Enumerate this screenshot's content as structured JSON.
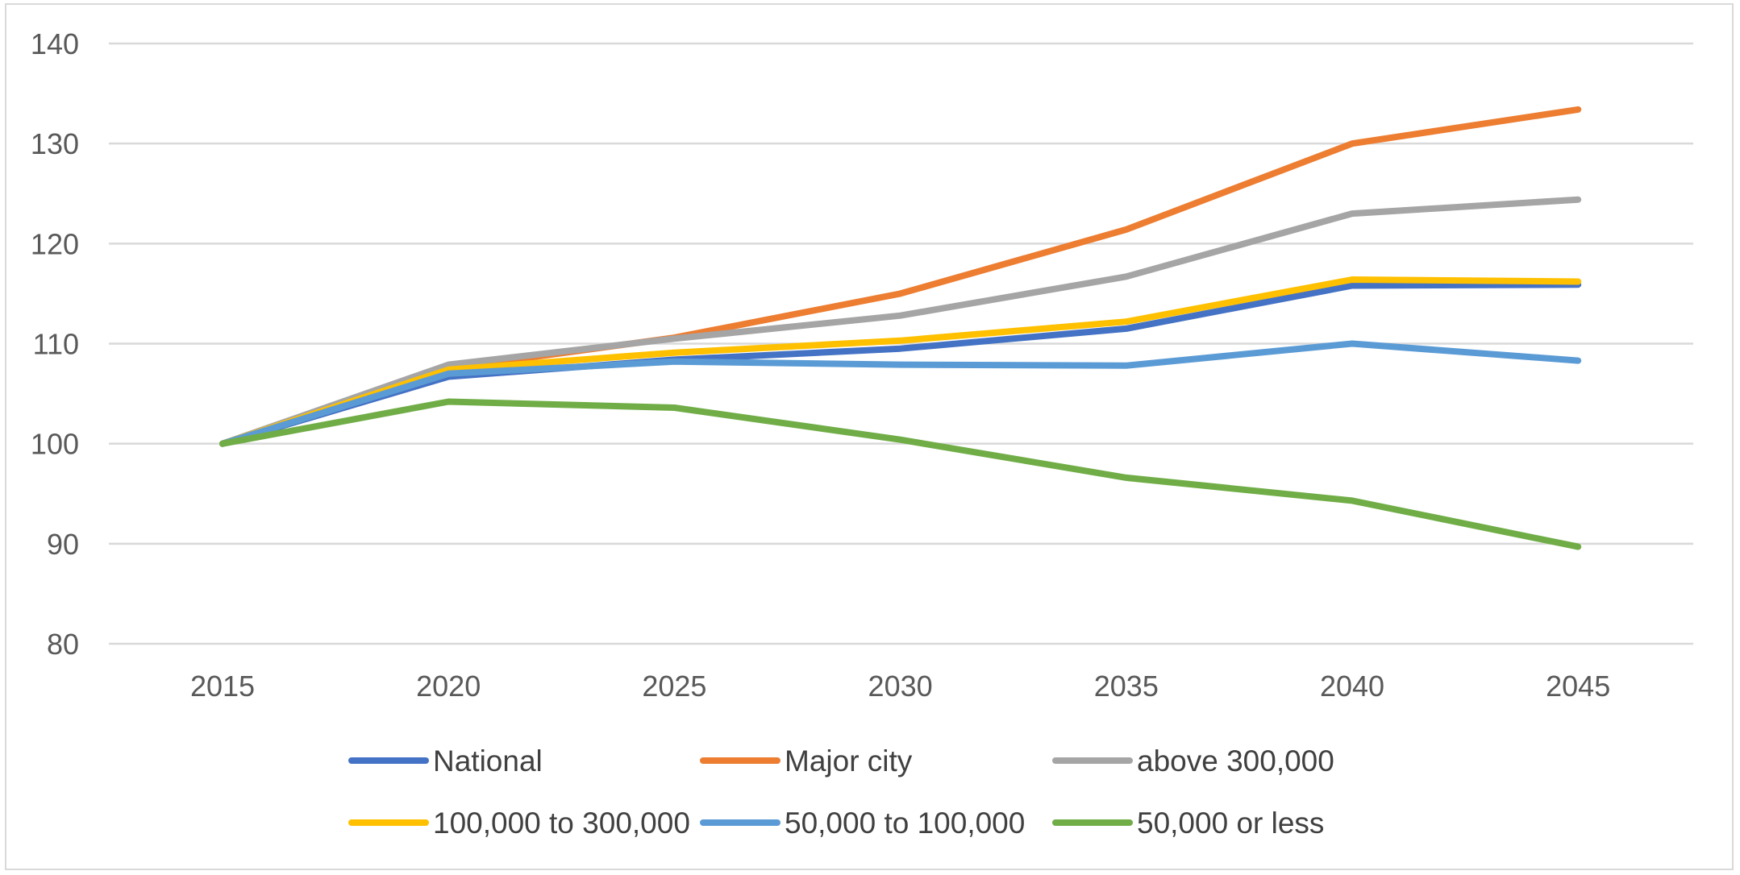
{
  "chart_data": {
    "type": "line",
    "title": "",
    "xlabel": "",
    "ylabel": "",
    "categories": [
      "2015",
      "2020",
      "2025",
      "2030",
      "2035",
      "2040",
      "2045"
    ],
    "yticks": [
      "80",
      "90",
      "100",
      "110",
      "120",
      "130",
      "140"
    ],
    "ylim": [
      80,
      140
    ],
    "grid": true,
    "legend_position": "bottom",
    "series": [
      {
        "name": "National",
        "color": "#4472c4",
        "values": [
          100,
          106.7,
          108.4,
          109.5,
          111.5,
          115.8,
          115.9
        ]
      },
      {
        "name": "Major city",
        "color": "#ed7d31",
        "values": [
          100,
          107.5,
          110.6,
          115.0,
          121.4,
          130.0,
          133.4
        ]
      },
      {
        "name": "above 300,000",
        "color": "#a5a5a5",
        "values": [
          100,
          107.9,
          110.5,
          112.8,
          116.7,
          123.0,
          124.4
        ]
      },
      {
        "name": "100,000 to 300,000",
        "color": "#ffc000",
        "values": [
          100,
          107.4,
          109.1,
          110.3,
          112.2,
          116.4,
          116.2
        ]
      },
      {
        "name": "50,000 to 100,000",
        "color": "#5b9bd5",
        "values": [
          100,
          107.0,
          108.2,
          107.9,
          107.8,
          110.0,
          108.3
        ]
      },
      {
        "name": "50,000 or less",
        "color": "#70ad47",
        "values": [
          100,
          104.2,
          103.6,
          100.4,
          96.6,
          94.3,
          89.7
        ]
      }
    ]
  }
}
